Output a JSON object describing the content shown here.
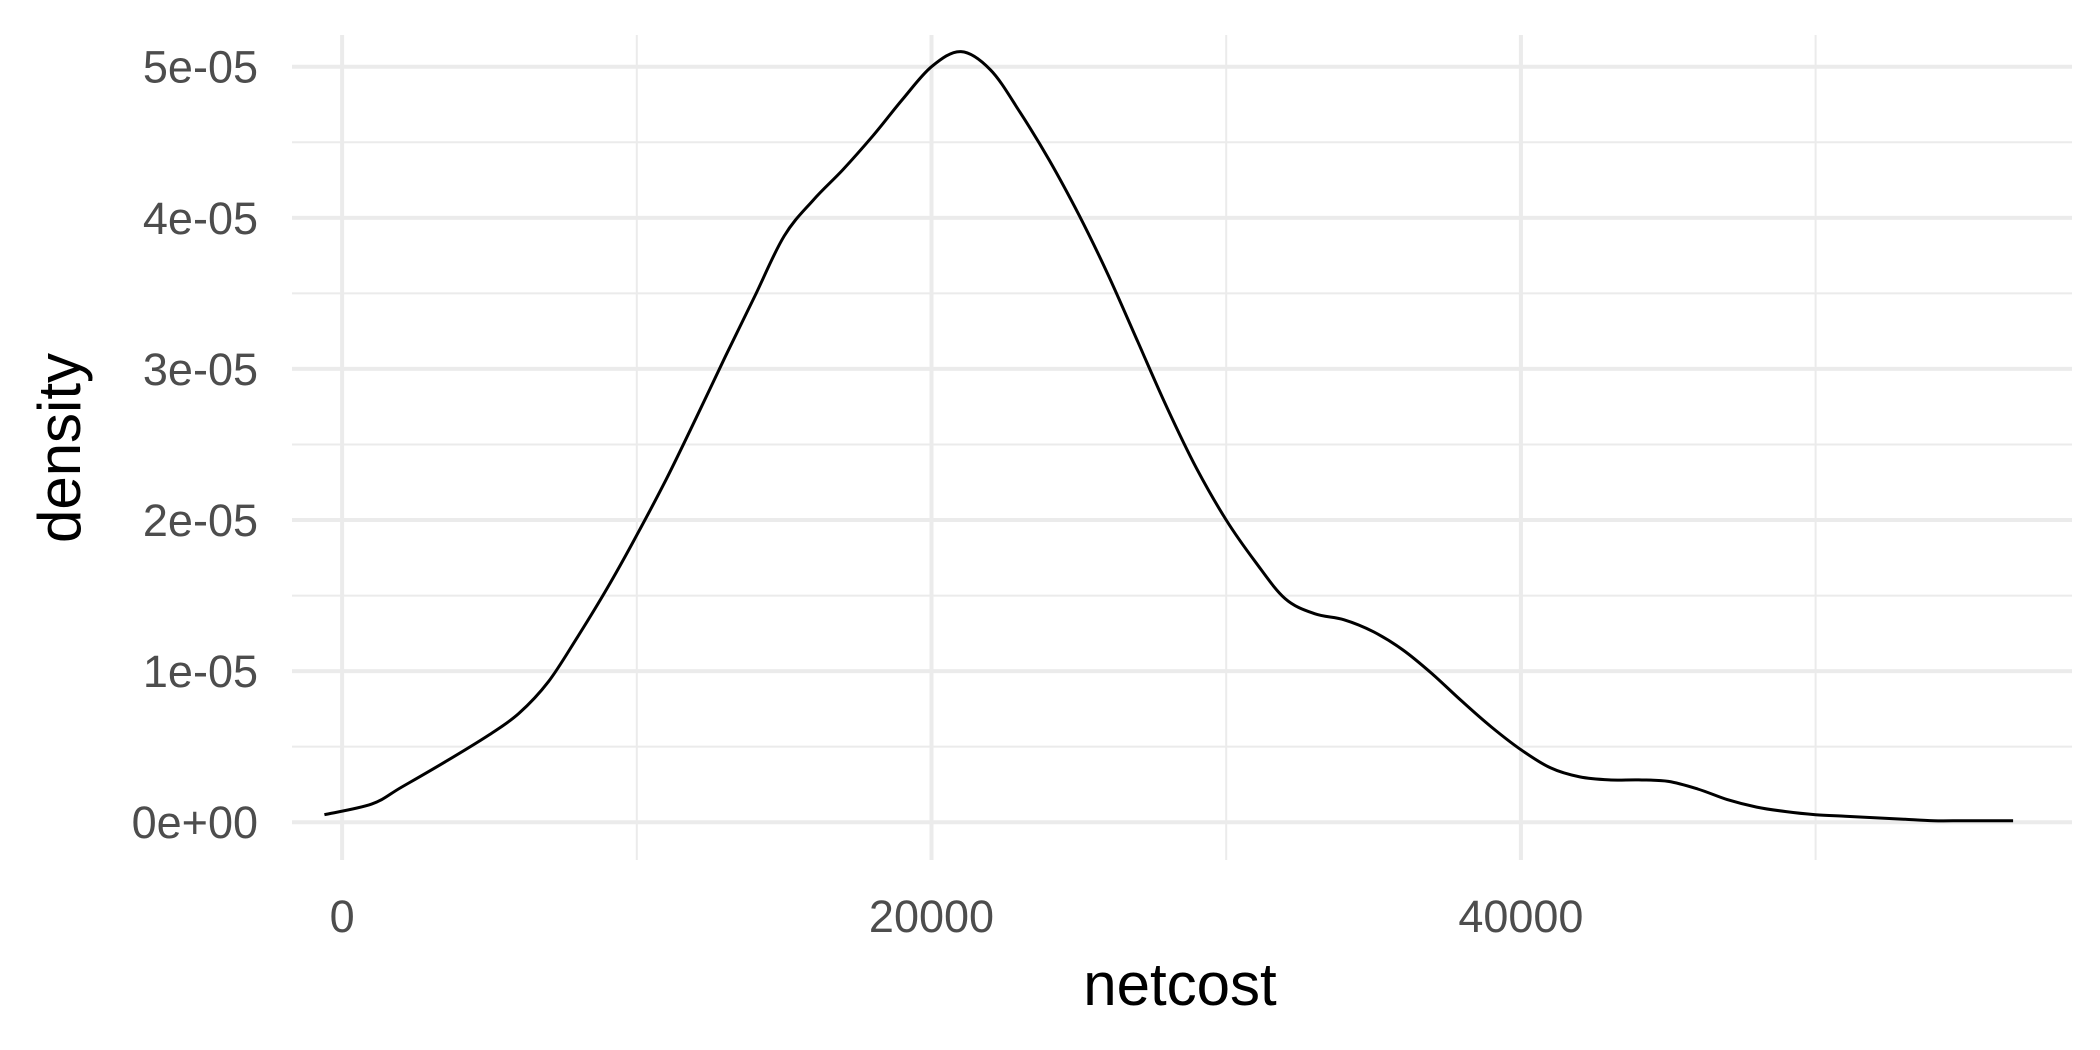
{
  "chart_data": {
    "type": "line",
    "title": "",
    "xlabel": "netcost",
    "ylabel": "density",
    "xlim": [
      -1700,
      58700
    ],
    "ylim": [
      -2.5e-06,
      5.21e-05
    ],
    "x_ticks": [
      0,
      20000,
      40000
    ],
    "x_tick_labels": [
      "0",
      "20000",
      "40000"
    ],
    "x_minor_ticks": [
      10000,
      30000,
      50000
    ],
    "y_ticks": [
      0,
      1e-05,
      2e-05,
      3e-05,
      4e-05,
      5e-05
    ],
    "y_tick_labels": [
      "0e+00",
      "1e-05",
      "2e-05",
      "3e-05",
      "4e-05",
      "5e-05"
    ],
    "y_minor_ticks": [
      5e-06,
      1.5e-05,
      2.5e-05,
      3.5e-05,
      4.5e-05
    ],
    "grid": true,
    "series": [
      {
        "line_color": "#000000",
        "x": [
          -600,
          1000,
          2000,
          3500,
          5000,
          6000,
          7000,
          8000,
          9000,
          10000,
          11000,
          12000,
          13000,
          14000,
          15000,
          16000,
          17000,
          18000,
          19000,
          20000,
          21000,
          22000,
          23000,
          24000,
          25000,
          26000,
          27000,
          28000,
          29000,
          30000,
          31000,
          32000,
          33000,
          34000,
          35000,
          36000,
          37000,
          38000,
          39000,
          40000,
          41000,
          42000,
          43000,
          44000,
          45000,
          46000,
          47000,
          48000,
          49000,
          50000,
          51000,
          52000,
          53000,
          54000,
          55000,
          56000,
          56700
        ],
        "y": [
          5e-07,
          1.2e-06,
          2.3e-06,
          4e-06,
          5.8e-06,
          7.2e-06,
          9.3e-06,
          1.23e-05,
          1.55e-05,
          1.9e-05,
          2.27e-05,
          2.67e-05,
          3.08e-05,
          3.48e-05,
          3.88e-05,
          4.12e-05,
          4.32e-05,
          4.54e-05,
          4.78e-05,
          5e-05,
          5.1e-05,
          4.98e-05,
          4.7e-05,
          4.38e-05,
          4.02e-05,
          3.62e-05,
          3.18e-05,
          2.74e-05,
          2.34e-05,
          2e-05,
          1.72e-05,
          1.48e-05,
          1.38e-05,
          1.34e-05,
          1.26e-05,
          1.14e-05,
          9.8e-06,
          8e-06,
          6.3e-06,
          4.8e-06,
          3.6e-06,
          3e-06,
          2.8e-06,
          2.8e-06,
          2.7e-06,
          2.2e-06,
          1.5e-06,
          1e-06,
          7e-07,
          5e-07,
          4e-07,
          3e-07,
          2e-07,
          1e-07,
          1e-07,
          1e-07,
          1e-07
        ]
      }
    ]
  }
}
